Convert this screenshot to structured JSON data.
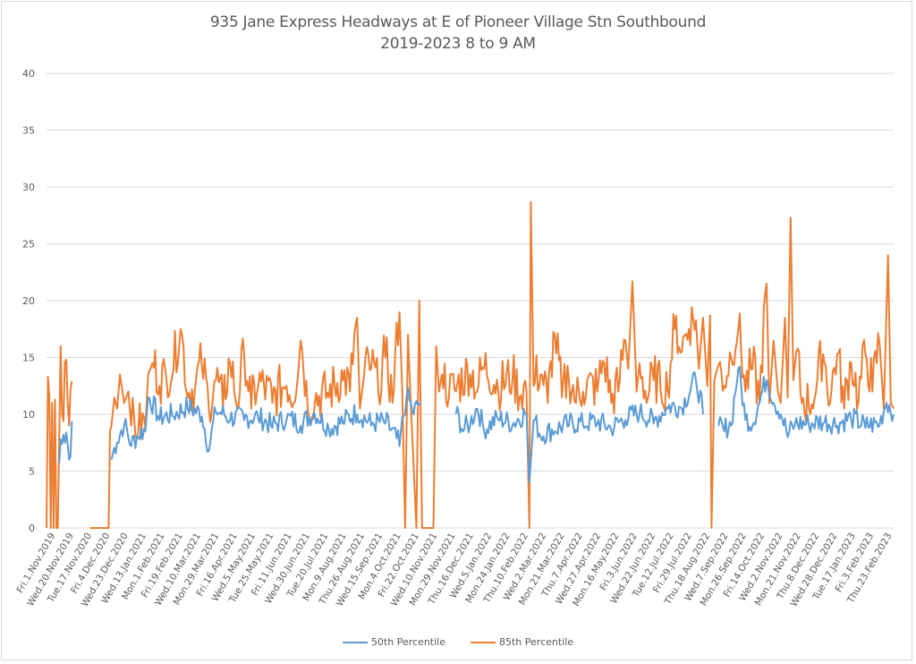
{
  "chart_data": {
    "type": "line",
    "title": "935 Jane Express Headways at E of Pioneer Village Stn Southbound",
    "subtitle": "2019-2023 8 to 9 AM",
    "xlabel": "",
    "ylabel": "",
    "ylim": [
      0,
      40
    ],
    "yticks": [
      0,
      5,
      10,
      15,
      20,
      25,
      30,
      35,
      40
    ],
    "grid": true,
    "legend_position": "bottom",
    "x_tick_labels": [
      "Fri.1.Nov.2019",
      "Wed.20.Nov.2019",
      "Tue.17.Nov.2020",
      "Fri.4.Dec.2020",
      "Wed.23.Dec.2020",
      "Wed.13.Jan.2021",
      "Mon.1.Feb.2021",
      "Fri.19.Feb.2021",
      "Wed.10.Mar.2021",
      "Mon.29.Mar.2021",
      "Fri.16.Apr.2021",
      "Wed.5.May.2021",
      "Tue.25.May.2021",
      "Fri.11.Jun.2021",
      "Wed.30.Jun.2021",
      "Tue.20.Jul.2021",
      "Mon.9.Aug.2021",
      "Thu.26.Aug.2021",
      "Wed.15.Sep.2021",
      "Mon.4.Oct.2021",
      "Fri.22.Oct.2021",
      "Wed.10.Nov.2021",
      "Mon.29.Nov.2021",
      "Thu.16.Dec.2021",
      "Wed.5.Jan.2022",
      "Mon.24.Jan.2022",
      "Thu.10.Feb.2022",
      "Wed.2.Mar.2022",
      "Mon.21.Mar.2022",
      "Thu.7.Apr.2022",
      "Wed.27.Apr.2022",
      "Mon.16.May.2022",
      "Fri.3.Jun.2022",
      "Wed.22.Jun.2022",
      "Tue.12.Jul.2022",
      "Fri.29.Jul.2022",
      "Thu.18.Aug.2022",
      "Wed.7.Sep.2022",
      "Mon.26.Sep.2022",
      "Fri.14.Oct.2022",
      "Wed.2.Nov.2022",
      "Mon.21.Nov.2022",
      "Thu.8.Dec.2022",
      "Wed.28.Dec.2022",
      "Tue.17.Jan.2023",
      "Fri.3.Feb.2023",
      "Thu.23.Feb.2023"
    ],
    "x_tick_index_step": 13,
    "n_points": 600,
    "series": [
      {
        "name": "50th Percentile",
        "color": "#5b9bd5",
        "anchors": [
          [
            0,
            null
          ],
          [
            8,
            null
          ],
          [
            9,
            5.7
          ],
          [
            10,
            7.8
          ],
          [
            11,
            7.4
          ],
          [
            12,
            8.2
          ],
          [
            13,
            7.5
          ],
          [
            14,
            8.4
          ],
          [
            15,
            7.3
          ],
          [
            16,
            6.0
          ],
          [
            17,
            6.3
          ],
          [
            18,
            9.4
          ],
          [
            19,
            null
          ],
          [
            45,
            null
          ],
          [
            46,
            6.0
          ],
          [
            50,
            7.5
          ],
          [
            55,
            9.0
          ],
          [
            60,
            7.2
          ],
          [
            65,
            8.0
          ],
          [
            70,
            8.5
          ],
          [
            72,
            11.5
          ],
          [
            80,
            9.5
          ],
          [
            90,
            9.8
          ],
          [
            100,
            10.5
          ],
          [
            110,
            9.8
          ],
          [
            115,
            6.8
          ],
          [
            120,
            10.2
          ],
          [
            130,
            9.5
          ],
          [
            140,
            9.5
          ],
          [
            150,
            9.6
          ],
          [
            160,
            8.8
          ],
          [
            170,
            9.5
          ],
          [
            180,
            9.0
          ],
          [
            190,
            10.0
          ],
          [
            200,
            8.6
          ],
          [
            210,
            9.2
          ],
          [
            220,
            10.0
          ],
          [
            230,
            9.0
          ],
          [
            240,
            9.2
          ],
          [
            250,
            7.2
          ],
          [
            255,
            11.5
          ],
          [
            260,
            10.0
          ],
          [
            265,
            11.0
          ],
          [
            268,
            null
          ],
          [
            274,
            null
          ],
          [
            276,
            null
          ],
          [
            285,
            null
          ],
          [
            290,
            10.0
          ],
          [
            295,
            8.5
          ],
          [
            300,
            9.0
          ],
          [
            305,
            10.5
          ],
          [
            310,
            8.5
          ],
          [
            320,
            9.5
          ],
          [
            330,
            9.0
          ],
          [
            340,
            10.0
          ],
          [
            342,
            4.0
          ],
          [
            345,
            9.5
          ],
          [
            350,
            8.0
          ],
          [
            360,
            8.5
          ],
          [
            370,
            9.0
          ],
          [
            380,
            9.0
          ],
          [
            390,
            9.2
          ],
          [
            400,
            8.6
          ],
          [
            410,
            9.5
          ],
          [
            420,
            10.0
          ],
          [
            430,
            9.2
          ],
          [
            440,
            10.5
          ],
          [
            450,
            10.5
          ],
          [
            460,
            13.0
          ],
          [
            465,
            10.0
          ],
          [
            470,
            null
          ],
          [
            473,
            null
          ],
          [
            476,
            9.0
          ],
          [
            480,
            8.5
          ],
          [
            485,
            9.0
          ],
          [
            490,
            14.0
          ],
          [
            495,
            9.5
          ],
          [
            500,
            9.0
          ],
          [
            505,
            11.0
          ],
          [
            510,
            13.0
          ],
          [
            515,
            11.0
          ],
          [
            520,
            10.0
          ],
          [
            525,
            8.0
          ],
          [
            530,
            9.0
          ],
          [
            540,
            9.0
          ],
          [
            550,
            9.2
          ],
          [
            560,
            9.0
          ],
          [
            570,
            9.5
          ],
          [
            580,
            8.8
          ],
          [
            590,
            9.0
          ],
          [
            595,
            11.0
          ],
          [
            600,
            10.0
          ]
        ]
      },
      {
        "name": "85th Percentile",
        "color": "#ed7d31",
        "anchors": [
          [
            0,
            0
          ],
          [
            1,
            13.3
          ],
          [
            2,
            11.5
          ],
          [
            3,
            0
          ],
          [
            4,
            11.0
          ],
          [
            5,
            0
          ],
          [
            6,
            11.3
          ],
          [
            7,
            0
          ],
          [
            8,
            0
          ],
          [
            9,
            7.8
          ],
          [
            10,
            16.0
          ],
          [
            11,
            10.0
          ],
          [
            12,
            9.4
          ],
          [
            13,
            14.6
          ],
          [
            14,
            14.8
          ],
          [
            15,
            11.0
          ],
          [
            16,
            9.0
          ],
          [
            17,
            12.2
          ],
          [
            18,
            12.9
          ],
          [
            19,
            null
          ],
          [
            30,
            null
          ],
          [
            31,
            0
          ],
          [
            44,
            0
          ],
          [
            45,
            8.5
          ],
          [
            46,
            9.0
          ],
          [
            48,
            11.5
          ],
          [
            50,
            10.5
          ],
          [
            52,
            13.5
          ],
          [
            55,
            11.0
          ],
          [
            58,
            12.0
          ],
          [
            60,
            9.0
          ],
          [
            65,
            8.5
          ],
          [
            70,
            8.8
          ],
          [
            72,
            13.5
          ],
          [
            75,
            14.5
          ],
          [
            80,
            12.5
          ],
          [
            85,
            13.0
          ],
          [
            90,
            14.0
          ],
          [
            95,
            17.5
          ],
          [
            100,
            11.5
          ],
          [
            105,
            12.0
          ],
          [
            110,
            14.3
          ],
          [
            115,
            10.5
          ],
          [
            120,
            13.0
          ],
          [
            125,
            10.5
          ],
          [
            130,
            14.5
          ],
          [
            135,
            10.5
          ],
          [
            140,
            15.2
          ],
          [
            145,
            10.5
          ],
          [
            150,
            12.5
          ],
          [
            160,
            11.0
          ],
          [
            170,
            12.5
          ],
          [
            175,
            11.0
          ],
          [
            180,
            16.5
          ],
          [
            185,
            10.5
          ],
          [
            190,
            11.0
          ],
          [
            200,
            11.5
          ],
          [
            210,
            13.0
          ],
          [
            215,
            12.0
          ],
          [
            220,
            18.5
          ],
          [
            222,
            10.5
          ],
          [
            225,
            13.5
          ],
          [
            230,
            14.0
          ],
          [
            235,
            12.0
          ],
          [
            240,
            15.0
          ],
          [
            245,
            11.0
          ],
          [
            250,
            19.0
          ],
          [
            252,
            12.0
          ],
          [
            254,
            0
          ],
          [
            256,
            17.0
          ],
          [
            258,
            11.0
          ],
          [
            262,
            0
          ],
          [
            264,
            20.0
          ],
          [
            266,
            0
          ],
          [
            268,
            0
          ],
          [
            270,
            0
          ],
          [
            272,
            0
          ],
          [
            274,
            0
          ],
          [
            276,
            16.0
          ],
          [
            278,
            12.0
          ],
          [
            280,
            13.5
          ],
          [
            285,
            11.5
          ],
          [
            290,
            12.0
          ],
          [
            300,
            13.5
          ],
          [
            305,
            12.0
          ],
          [
            310,
            14.0
          ],
          [
            320,
            12.0
          ],
          [
            330,
            13.0
          ],
          [
            335,
            11.5
          ],
          [
            340,
            12.0
          ],
          [
            342,
            0
          ],
          [
            343,
            28.7
          ],
          [
            345,
            12.5
          ],
          [
            350,
            13.5
          ],
          [
            355,
            11.0
          ],
          [
            360,
            17.0
          ],
          [
            365,
            11.5
          ],
          [
            370,
            13.0
          ],
          [
            375,
            11.0
          ],
          [
            380,
            12.0
          ],
          [
            390,
            12.0
          ],
          [
            395,
            14.5
          ],
          [
            400,
            11.0
          ],
          [
            405,
            12.0
          ],
          [
            410,
            16.5
          ],
          [
            412,
            14.0
          ],
          [
            415,
            21.7
          ],
          [
            418,
            12.0
          ],
          [
            420,
            14.5
          ],
          [
            425,
            11.0
          ],
          [
            430,
            13.0
          ],
          [
            435,
            12.0
          ],
          [
            440,
            12.0
          ],
          [
            445,
            17.5
          ],
          [
            450,
            15.5
          ],
          [
            455,
            17.5
          ],
          [
            460,
            18.3
          ],
          [
            462,
            14.0
          ],
          [
            465,
            18.5
          ],
          [
            468,
            12.5
          ],
          [
            470,
            18.7
          ],
          [
            471,
            0
          ],
          [
            473,
            13.0
          ],
          [
            475,
            14.0
          ],
          [
            480,
            12.5
          ],
          [
            485,
            15.0
          ],
          [
            490,
            17.5
          ],
          [
            495,
            12.0
          ],
          [
            500,
            14.0
          ],
          [
            505,
            11.0
          ],
          [
            510,
            21.5
          ],
          [
            512,
            11.0
          ],
          [
            515,
            16.5
          ],
          [
            518,
            12.0
          ],
          [
            520,
            11.0
          ],
          [
            523,
            18.5
          ],
          [
            525,
            11.5
          ],
          [
            527,
            27.3
          ],
          [
            529,
            13.0
          ],
          [
            531,
            15.5
          ],
          [
            535,
            11.0
          ],
          [
            540,
            10.5
          ],
          [
            545,
            12.0
          ],
          [
            550,
            15.3
          ],
          [
            555,
            11.0
          ],
          [
            560,
            15.3
          ],
          [
            565,
            10.5
          ],
          [
            570,
            14.5
          ],
          [
            575,
            11.0
          ],
          [
            580,
            15.3
          ],
          [
            585,
            12.0
          ],
          [
            590,
            16.3
          ],
          [
            593,
            10.5
          ],
          [
            596,
            24.0
          ],
          [
            598,
            11.0
          ],
          [
            600,
            10.5
          ]
        ]
      }
    ]
  },
  "legend": {
    "items": [
      "50th Percentile",
      "85th Percentile"
    ]
  }
}
